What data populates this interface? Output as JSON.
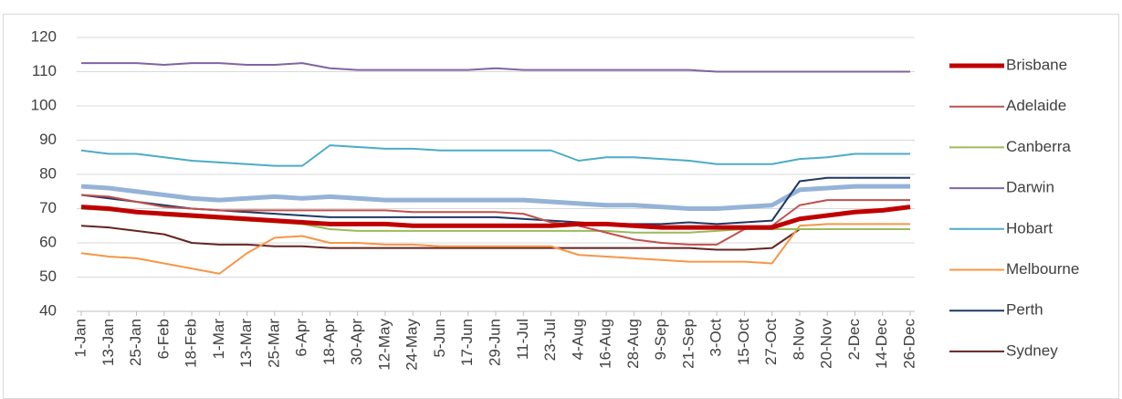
{
  "chart_data": {
    "type": "line",
    "categories": [
      "1-Jan",
      "13-Jan",
      "25-Jan",
      "6-Feb",
      "18-Feb",
      "1-Mar",
      "13-Mar",
      "25-Mar",
      "6-Apr",
      "18-Apr",
      "30-Apr",
      "12-May",
      "24-May",
      "5-Jun",
      "17-Jun",
      "29-Jun",
      "11-Jul",
      "23-Jul",
      "4-Aug",
      "16-Aug",
      "28-Aug",
      "9-Sep",
      "21-Sep",
      "3-Oct",
      "15-Oct",
      "27-Oct",
      "8-Nov",
      "20-Nov",
      "2-Dec",
      "14-Dec",
      "26-Dec"
    ],
    "ylim": [
      40,
      120
    ],
    "yticks": [
      40,
      50,
      60,
      70,
      80,
      90,
      100,
      110,
      120
    ],
    "grid": true,
    "legend": "right",
    "series": [
      {
        "name": "Brisbane",
        "color": "#c00000",
        "width": 5,
        "values": [
          70.5,
          70,
          69,
          68.5,
          68,
          67.5,
          67,
          66.5,
          66,
          65.5,
          65.5,
          65.5,
          65,
          65,
          65,
          65,
          65,
          65,
          65.5,
          65.5,
          65,
          64.5,
          64.5,
          64.5,
          64.5,
          64.5,
          67,
          68,
          69,
          69.5,
          70.5
        ]
      },
      {
        "name": "Adelaide",
        "color": "#c0504d",
        "width": 2,
        "values": [
          74,
          73.5,
          72,
          70.5,
          70,
          69.5,
          69.5,
          69.5,
          69.5,
          69.5,
          69.5,
          69.5,
          69,
          69,
          69,
          69,
          68.5,
          66,
          65,
          63,
          61,
          60,
          59.5,
          59.5,
          64,
          65,
          71,
          72.5,
          72.5,
          72.5,
          72.5
        ]
      },
      {
        "name": "Canberra",
        "color": "#9bbb59",
        "width": 2,
        "values": [
          70,
          69.5,
          69,
          68,
          67.5,
          67,
          66.5,
          66,
          65.5,
          64,
          63.5,
          63.5,
          63.5,
          63.5,
          63.5,
          63.5,
          63.5,
          63.5,
          63.5,
          63.5,
          63,
          63,
          63,
          63.5,
          64,
          64,
          64,
          64,
          64,
          64,
          64
        ]
      },
      {
        "name": "Darwin",
        "color": "#8064a2",
        "width": 2,
        "values": [
          112.5,
          112.5,
          112.5,
          112,
          112.5,
          112.5,
          112,
          112,
          112.5,
          111,
          110.5,
          110.5,
          110.5,
          110.5,
          110.5,
          111,
          110.5,
          110.5,
          110.5,
          110.5,
          110.5,
          110.5,
          110.5,
          110,
          110,
          110,
          110,
          110,
          110,
          110,
          110
        ]
      },
      {
        "name": "Hobart",
        "color": "#4bacc6",
        "width": 2,
        "values": [
          87,
          86,
          86,
          85,
          84,
          83.5,
          83,
          82.5,
          82.5,
          88.5,
          88,
          87.5,
          87.5,
          87,
          87,
          87,
          87,
          87,
          84,
          85,
          85,
          84.5,
          84,
          83,
          83,
          83,
          84.5,
          85,
          86,
          86,
          86
        ]
      },
      {
        "name": "Melbourne",
        "color": "#f79646",
        "width": 2,
        "values": [
          57,
          56,
          55.5,
          54,
          52.5,
          51,
          57,
          61.5,
          62,
          60,
          60,
          59.5,
          59.5,
          59,
          59,
          59,
          59,
          59,
          56.5,
          56,
          55.5,
          55,
          54.5,
          54.5,
          54.5,
          54,
          65,
          65.5,
          65.5,
          65.5,
          65.5
        ]
      },
      {
        "name": "Perth",
        "color": "#1f3864",
        "width": 2,
        "values": [
          74,
          73,
          72,
          71,
          70,
          69.5,
          69,
          68.5,
          68,
          67.5,
          67.5,
          67.5,
          67.5,
          67.5,
          67.5,
          67.5,
          67,
          66.5,
          66,
          65.5,
          65.5,
          65.5,
          66,
          65.5,
          66,
          66.5,
          78,
          79,
          79,
          79,
          79
        ]
      },
      {
        "name": "Sydney",
        "color": "#632523",
        "width": 2,
        "values": [
          65,
          64.5,
          63.5,
          62.5,
          60,
          59.5,
          59.5,
          59,
          59,
          58.5,
          58.5,
          58.5,
          58.5,
          58.5,
          58.5,
          58.5,
          58.5,
          58.5,
          58.5,
          58.5,
          58.5,
          58.5,
          58.5,
          58,
          58,
          58.5,
          64,
          64,
          64,
          64,
          64
        ]
      },
      {
        "name": null,
        "color": "#95b3d7",
        "width": 5,
        "values": [
          76.5,
          76,
          75,
          74,
          73,
          72.5,
          73,
          73.5,
          73,
          73.5,
          73,
          72.5,
          72.5,
          72.5,
          72.5,
          72.5,
          72.5,
          72,
          71.5,
          71,
          71,
          70.5,
          70,
          70,
          70.5,
          71,
          75.5,
          76,
          76.5,
          76.5,
          76.5
        ]
      }
    ]
  }
}
